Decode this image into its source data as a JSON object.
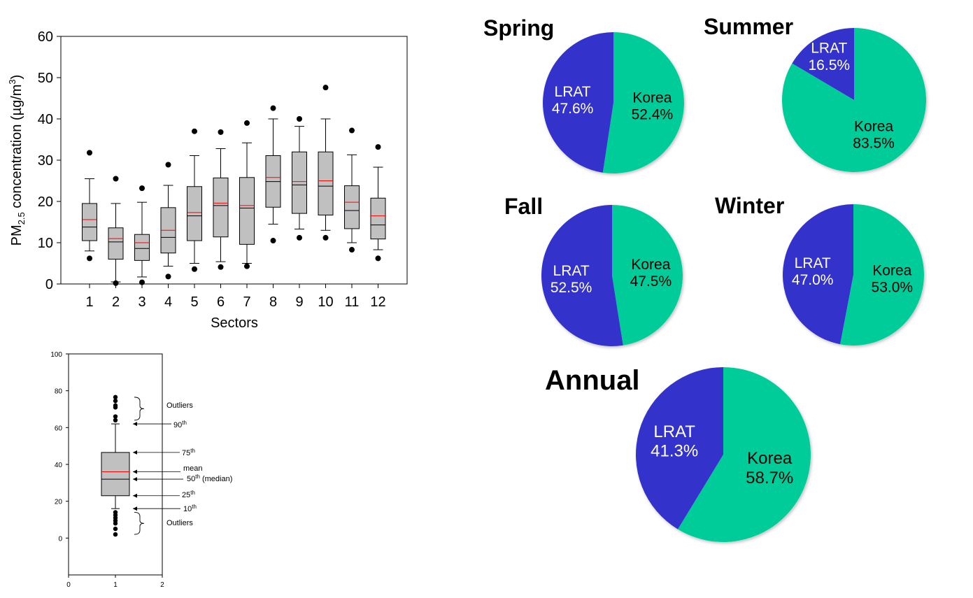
{
  "chart_data": [
    {
      "type": "box",
      "ylabel": "PM2.5 concentration (µg/m3)",
      "ylabel_parts": {
        "base": "PM",
        "sub": "2.5",
        "mid": " concentration (µg/m",
        "sup": "3",
        "end": ")"
      },
      "xlabel": "Sectors",
      "ylim": [
        0,
        60
      ],
      "yticks": [
        0,
        10,
        20,
        30,
        40,
        50,
        60
      ],
      "categories": [
        "1",
        "2",
        "3",
        "4",
        "5",
        "6",
        "7",
        "8",
        "9",
        "10",
        "11",
        "12"
      ],
      "boxes": [
        {
          "p10": 8.0,
          "q1": 10.5,
          "median": 13.8,
          "mean": 15.6,
          "q3": 19.5,
          "p90": 25.5,
          "outliers": [
            6.2,
            31.8
          ]
        },
        {
          "p10": 0.5,
          "q1": 6.0,
          "median": 10.2,
          "mean": 11.0,
          "q3": 13.6,
          "p90": 19.5,
          "outliers": [
            0.2,
            25.5
          ]
        },
        {
          "p10": 1.7,
          "q1": 5.7,
          "median": 8.6,
          "mean": 10.0,
          "q3": 12.0,
          "p90": 19.8,
          "outliers": [
            0.4,
            23.2
          ]
        },
        {
          "p10": 4.3,
          "q1": 7.5,
          "median": 11.3,
          "mean": 13.0,
          "q3": 18.5,
          "p90": 23.9,
          "outliers": [
            1.8,
            28.9
          ]
        },
        {
          "p10": 5.0,
          "q1": 10.5,
          "median": 16.5,
          "mean": 17.3,
          "q3": 23.6,
          "p90": 31.1,
          "outliers": [
            3.6,
            37.0
          ]
        },
        {
          "p10": 5.4,
          "q1": 11.4,
          "median": 19.0,
          "mean": 19.6,
          "q3": 25.7,
          "p90": 32.8,
          "outliers": [
            4.1,
            36.8
          ]
        },
        {
          "p10": 5.0,
          "q1": 9.6,
          "median": 18.4,
          "mean": 19.0,
          "q3": 25.8,
          "p90": 34.2,
          "outliers": [
            4.3,
            39.0
          ]
        },
        {
          "p10": 14.5,
          "q1": 18.6,
          "median": 24.8,
          "mean": 25.8,
          "q3": 31.1,
          "p90": 40.0,
          "outliers": [
            10.5,
            42.6
          ]
        },
        {
          "p10": 13.3,
          "q1": 17.1,
          "median": 24.0,
          "mean": 24.8,
          "q3": 32.0,
          "p90": 38.2,
          "outliers": [
            11.2,
            40.0
          ]
        },
        {
          "p10": 13.0,
          "q1": 16.7,
          "median": 23.7,
          "mean": 25.0,
          "q3": 32.0,
          "p90": 40.0,
          "outliers": [
            11.2,
            47.6
          ]
        },
        {
          "p10": 10.0,
          "q1": 13.4,
          "median": 17.8,
          "mean": 19.8,
          "q3": 23.8,
          "p90": 31.3,
          "outliers": [
            8.3,
            37.2
          ]
        },
        {
          "p10": 8.3,
          "q1": 10.9,
          "median": 14.3,
          "mean": 16.5,
          "q3": 20.8,
          "p90": 28.3,
          "outliers": [
            6.2,
            33.2
          ]
        }
      ]
    },
    {
      "type": "box",
      "subtype": "legend-example",
      "ylim": [
        -20,
        100
      ],
      "yticks": [
        0,
        20,
        40,
        60,
        80,
        100
      ],
      "xlim": [
        0,
        2
      ],
      "xticks": [
        0,
        1,
        2
      ],
      "box": {
        "x": 1,
        "p10": 16,
        "q1": 23,
        "median": 32,
        "mean": 36,
        "q3": 46.5,
        "p90": 62,
        "outliers": [
          2,
          5,
          8,
          9.5,
          11,
          12.5,
          14,
          64,
          66,
          71,
          72,
          74.5,
          76.5
        ]
      },
      "annotations": {
        "outliers_top": "Outliers",
        "p90": {
          "base": "90",
          "sup": "th"
        },
        "p75": {
          "base": "75",
          "sup": "th"
        },
        "mean": "mean",
        "median": {
          "base": "50",
          "sup": "th",
          "rest": " (median)"
        },
        "p25": {
          "base": "25",
          "sup": "th"
        },
        "p10": {
          "base": "10",
          "sup": "th"
        },
        "outliers_bottom": "Outliers"
      }
    },
    {
      "type": "pie",
      "pies": [
        {
          "title": "Spring",
          "slices": [
            {
              "label": "LRAT",
              "value": 47.6,
              "text": "47.6%"
            },
            {
              "label": "Korea",
              "value": 52.4,
              "text": "52.4%"
            }
          ]
        },
        {
          "title": "Summer",
          "slices": [
            {
              "label": "LRAT",
              "value": 16.5,
              "text": "16.5%"
            },
            {
              "label": "Korea",
              "value": 83.5,
              "text": "83.5%"
            }
          ]
        },
        {
          "title": "Fall",
          "slices": [
            {
              "label": "LRAT",
              "value": 52.5,
              "text": "52.5%"
            },
            {
              "label": "Korea",
              "value": 47.5,
              "text": "47.5%"
            }
          ]
        },
        {
          "title": "Winter",
          "slices": [
            {
              "label": "LRAT",
              "value": 47.0,
              "text": "47.0%"
            },
            {
              "label": "Korea",
              "value": 53.0,
              "text": "53.0%"
            }
          ]
        },
        {
          "title": "Annual",
          "slices": [
            {
              "label": "LRAT",
              "value": 41.3,
              "text": "41.3%"
            },
            {
              "label": "Korea",
              "value": 58.7,
              "text": "58.7%"
            }
          ]
        }
      ]
    }
  ],
  "colors": {
    "lrat": "#3333cc",
    "korea": "#00cc99",
    "box_fill": "#c0c0c0",
    "mean_line": "#ff0000",
    "axis": "#000000"
  }
}
